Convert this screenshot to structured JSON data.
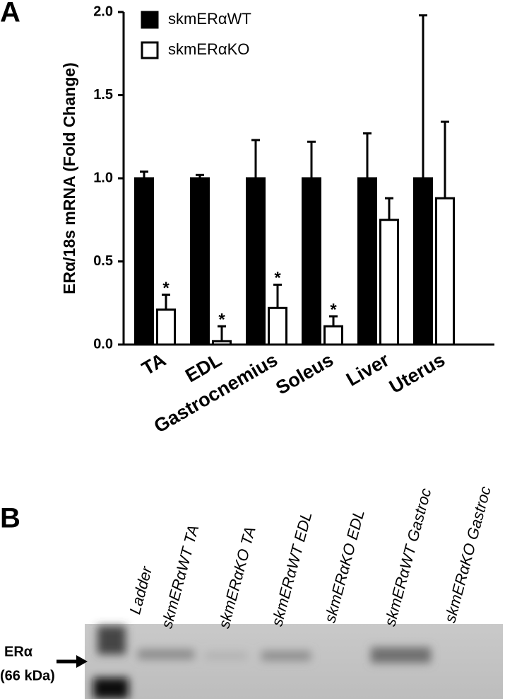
{
  "chart_data": {
    "type": "bar",
    "panel_label": "A",
    "ylabel": "ERα/18s mRNA (Fold Change)",
    "categories": [
      "TA",
      "EDL",
      "Gastrocnemius",
      "Soleus",
      "Liver",
      "Uterus"
    ],
    "series": [
      {
        "name": "skmERαWT",
        "color": "#000000",
        "values": [
          1.0,
          1.0,
          1.0,
          1.0,
          1.0,
          1.0
        ],
        "errors": [
          0.04,
          0.02,
          0.23,
          0.22,
          0.27,
          0.98
        ]
      },
      {
        "name": "skmERαKO",
        "color": "#ffffff",
        "values": [
          0.21,
          0.02,
          0.22,
          0.11,
          0.75,
          0.88
        ],
        "errors": [
          0.09,
          0.09,
          0.14,
          0.06,
          0.13,
          0.46
        ],
        "significance": [
          "*",
          "*",
          "*",
          "*",
          null,
          null
        ]
      }
    ],
    "ylim": [
      0,
      2
    ],
    "yticks": [
      {
        "value": 0,
        "label": "0.0"
      },
      0.5,
      {
        "value": 1,
        "label": "1.0"
      },
      1.5,
      {
        "value": 2,
        "label": "2.0"
      }
    ],
    "grid": false,
    "legend": "top-left"
  },
  "blot": {
    "panel_label": "B",
    "lanes": [
      "Ladder",
      "skmERαWT TA",
      "skmERαKO TA",
      "skmERαWT EDL",
      "skmERαKO EDL",
      "skmERαWT Gastroc",
      "skmERαKO Gastroc"
    ],
    "band_label": "ERα",
    "band_size": "(66 kDa)"
  }
}
